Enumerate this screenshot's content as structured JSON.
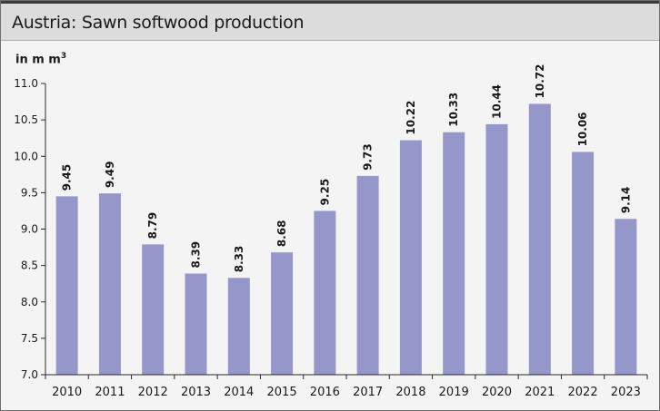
{
  "title": "Austria: Sawn softwood production",
  "unit_label": {
    "text": "in m m",
    "sup": "3"
  },
  "colors": {
    "bar": "#9597cb",
    "axis": "#2a2a2a",
    "header_bg": "#dcdcdc",
    "plot_bg": "#f4f4f4"
  },
  "chart_data": {
    "type": "bar",
    "title": "Austria: Sawn softwood production",
    "xlabel": "",
    "ylabel": "in m m3",
    "categories": [
      "2010",
      "2011",
      "2012",
      "2013",
      "2014",
      "2015",
      "2016",
      "2017",
      "2018",
      "2019",
      "2020",
      "2021",
      "2022",
      "2023"
    ],
    "values": [
      9.45,
      9.49,
      8.79,
      8.39,
      8.33,
      8.68,
      9.25,
      9.73,
      10.22,
      10.33,
      10.44,
      10.72,
      10.06,
      9.14
    ],
    "value_labels": [
      "9.45",
      "9.49",
      "8.79",
      "8.39",
      "8.33",
      "8.68",
      "9.25",
      "9.73",
      "10.22",
      "10.33",
      "10.44",
      "10.72",
      "10.06",
      "9.14"
    ],
    "ylim": [
      7.0,
      11.0
    ],
    "yticks": [
      "7.0",
      "7.5",
      "8.0",
      "8.5",
      "9.0",
      "9.5",
      "10.0",
      "10.5",
      "11.0"
    ],
    "grid": false,
    "legend": "none"
  }
}
